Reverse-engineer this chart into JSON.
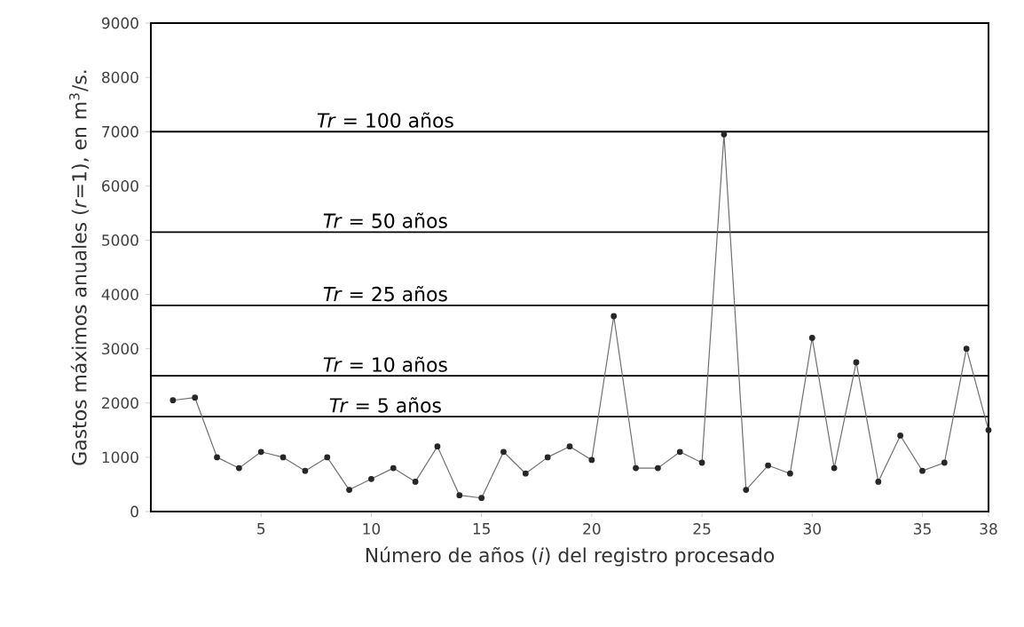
{
  "chart_data": {
    "type": "line",
    "xlabel": "Número de años (*i*) del registro procesado",
    "ylabel": "Gastos máximos anuales (*r*=1), en m$^{3}$/s.",
    "x": [
      1,
      2,
      3,
      4,
      5,
      6,
      7,
      8,
      9,
      10,
      11,
      12,
      13,
      14,
      15,
      16,
      17,
      18,
      19,
      20,
      21,
      22,
      23,
      24,
      25,
      26,
      27,
      28,
      29,
      30,
      31,
      32,
      33,
      34,
      35,
      36,
      37,
      38
    ],
    "series": [
      {
        "color": "#707070",
        "values": [
          2050,
          2100,
          1000,
          800,
          1100,
          1000,
          750,
          1000,
          400,
          600,
          800,
          550,
          1200,
          300,
          250,
          1100,
          700,
          1000,
          1200,
          950,
          3600,
          800,
          800,
          1100,
          900,
          6950,
          400,
          850,
          700,
          3200,
          800,
          2750,
          550,
          1400,
          750,
          900,
          3000,
          1500
        ]
      }
    ],
    "xlim": [
      0,
      38
    ],
    "ylim": [
      0,
      9000
    ],
    "xticks": [
      5,
      10,
      15,
      20,
      25,
      30,
      35,
      38
    ],
    "yticks": [
      0,
      1000,
      2000,
      3000,
      4000,
      5000,
      6000,
      7000,
      8000,
      9000
    ],
    "marker": "circle",
    "line_style": "solid",
    "grid": false,
    "ref_lines": [
      {
        "axis": "y",
        "value": 7000
      },
      {
        "axis": "y",
        "value": 5150
      },
      {
        "axis": "y",
        "value": 3800
      },
      {
        "axis": "y",
        "value": 2500
      },
      {
        "axis": "y",
        "value": 1750
      }
    ],
    "annotations": [
      {
        "text": "*Tr* = 100 años",
        "y": 7000
      },
      {
        "text": "*Tr* = 50 años",
        "y": 5150
      },
      {
        "text": "*Tr* = 25 años",
        "y": 3800
      },
      {
        "text": "*Tr* = 10 años",
        "y": 2500
      },
      {
        "text": "*Tr* = 5 años",
        "y": 1750
      }
    ]
  }
}
